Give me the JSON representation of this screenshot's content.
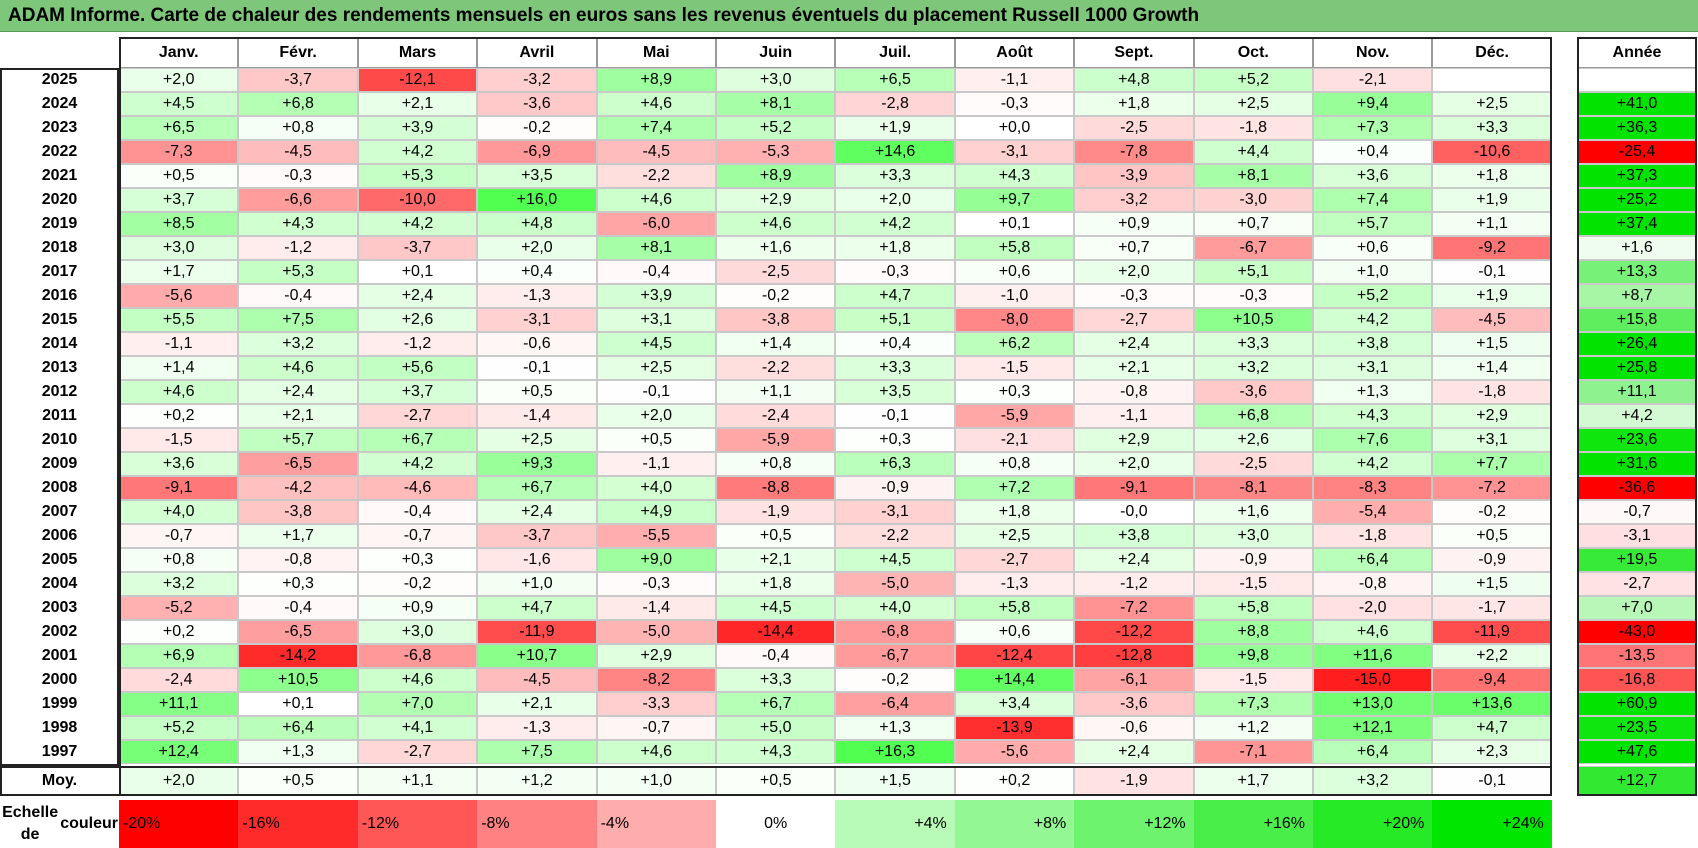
{
  "title": "ADAM Informe. Carte de chaleur des rendements mensuels en euros sans les revenus éventuels du placement Russell 1000 Growth",
  "colors": {
    "negative_max": "#ff0000",
    "neutral": "#ffffff",
    "positive_max": "#00e000",
    "title_bg": "#7dc67a"
  },
  "chart_data": {
    "type": "heatmap",
    "title": "ADAM Informe. Carte de chaleur des rendements mensuels en euros sans les revenus éventuels du placement Russell 1000 Growth",
    "months": [
      "Janv.",
      "Févr.",
      "Mars",
      "Avril",
      "Mai",
      "Juin",
      "Juil.",
      "Août",
      "Sept.",
      "Oct.",
      "Nov.",
      "Déc."
    ],
    "year_header": "Année",
    "rows": [
      {
        "year": "2025",
        "values": [
          "+2,0",
          "-3,7",
          "-12,1",
          "-3,2",
          "+8,9",
          "+3,0",
          "+6,5",
          "-1,1",
          "+4,8",
          "+5,2",
          "-2,1",
          ""
        ],
        "annual": ""
      },
      {
        "year": "2024",
        "values": [
          "+4,5",
          "+6,8",
          "+2,1",
          "-3,6",
          "+4,6",
          "+8,1",
          "-2,8",
          "-0,3",
          "+1,8",
          "+2,5",
          "+9,4",
          "+2,5"
        ],
        "annual": "+41,0"
      },
      {
        "year": "2023",
        "values": [
          "+6,5",
          "+0,8",
          "+3,9",
          "-0,2",
          "+7,4",
          "+5,2",
          "+1,9",
          "+0,0",
          "-2,5",
          "-1,8",
          "+7,3",
          "+3,3"
        ],
        "annual": "+36,3"
      },
      {
        "year": "2022",
        "values": [
          "-7,3",
          "-4,5",
          "+4,2",
          "-6,9",
          "-4,5",
          "-5,3",
          "+14,6",
          "-3,1",
          "-7,8",
          "+4,4",
          "+0,4",
          "-10,6"
        ],
        "annual": "-25,4"
      },
      {
        "year": "2021",
        "values": [
          "+0,5",
          "-0,3",
          "+5,3",
          "+3,5",
          "-2,2",
          "+8,9",
          "+3,3",
          "+4,3",
          "-3,9",
          "+8,1",
          "+3,6",
          "+1,8"
        ],
        "annual": "+37,3"
      },
      {
        "year": "2020",
        "values": [
          "+3,7",
          "-6,6",
          "-10,0",
          "+16,0",
          "+4,6",
          "+2,9",
          "+2,0",
          "+9,7",
          "-3,2",
          "-3,0",
          "+7,4",
          "+1,9"
        ],
        "annual": "+25,2"
      },
      {
        "year": "2019",
        "values": [
          "+8,5",
          "+4,3",
          "+4,2",
          "+4,8",
          "-6,0",
          "+4,6",
          "+4,2",
          "+0,1",
          "+0,9",
          "+0,7",
          "+5,7",
          "+1,1"
        ],
        "annual": "+37,4"
      },
      {
        "year": "2018",
        "values": [
          "+3,0",
          "-1,2",
          "-3,7",
          "+2,0",
          "+8,1",
          "+1,6",
          "+1,8",
          "+5,8",
          "+0,7",
          "-6,7",
          "+0,6",
          "-9,2"
        ],
        "annual": "+1,6"
      },
      {
        "year": "2017",
        "values": [
          "+1,7",
          "+5,3",
          "+0,1",
          "+0,4",
          "-0,4",
          "-2,5",
          "-0,3",
          "+0,6",
          "+2,0",
          "+5,1",
          "+1,0",
          "-0,1"
        ],
        "annual": "+13,3"
      },
      {
        "year": "2016",
        "values": [
          "-5,6",
          "-0,4",
          "+2,4",
          "-1,3",
          "+3,9",
          "-0,2",
          "+4,7",
          "-1,0",
          "-0,3",
          "-0,3",
          "+5,2",
          "+1,9"
        ],
        "annual": "+8,7"
      },
      {
        "year": "2015",
        "values": [
          "+5,5",
          "+7,5",
          "+2,6",
          "-3,1",
          "+3,1",
          "-3,8",
          "+5,1",
          "-8,0",
          "-2,7",
          "+10,5",
          "+4,2",
          "-4,5"
        ],
        "annual": "+15,8"
      },
      {
        "year": "2014",
        "values": [
          "-1,1",
          "+3,2",
          "-1,2",
          "-0,6",
          "+4,5",
          "+1,4",
          "+0,4",
          "+6,2",
          "+2,4",
          "+3,3",
          "+3,8",
          "+1,5"
        ],
        "annual": "+26,4"
      },
      {
        "year": "2013",
        "values": [
          "+1,4",
          "+4,6",
          "+5,6",
          "-0,1",
          "+2,5",
          "-2,2",
          "+3,3",
          "-1,5",
          "+2,1",
          "+3,2",
          "+3,1",
          "+1,4"
        ],
        "annual": "+25,8"
      },
      {
        "year": "2012",
        "values": [
          "+4,6",
          "+2,4",
          "+3,7",
          "+0,5",
          "-0,1",
          "+1,1",
          "+3,5",
          "+0,3",
          "-0,8",
          "-3,6",
          "+1,3",
          "-1,8"
        ],
        "annual": "+11,1"
      },
      {
        "year": "2011",
        "values": [
          "+0,2",
          "+2,1",
          "-2,7",
          "-1,4",
          "+2,0",
          "-2,4",
          "-0,1",
          "-5,9",
          "-1,1",
          "+6,8",
          "+4,3",
          "+2,9"
        ],
        "annual": "+4,2"
      },
      {
        "year": "2010",
        "values": [
          "-1,5",
          "+5,7",
          "+6,7",
          "+2,5",
          "+0,5",
          "-5,9",
          "+0,3",
          "-2,1",
          "+2,9",
          "+2,6",
          "+7,6",
          "+3,1"
        ],
        "annual": "+23,6"
      },
      {
        "year": "2009",
        "values": [
          "+3,6",
          "-6,5",
          "+4,2",
          "+9,3",
          "-1,1",
          "+0,8",
          "+6,3",
          "+0,8",
          "+2,0",
          "-2,5",
          "+4,2",
          "+7,7"
        ],
        "annual": "+31,6"
      },
      {
        "year": "2008",
        "values": [
          "-9,1",
          "-4,2",
          "-4,6",
          "+6,7",
          "+4,0",
          "-8,8",
          "-0,9",
          "+7,2",
          "-9,1",
          "-8,1",
          "-8,3",
          "-7,2"
        ],
        "annual": "-36,6"
      },
      {
        "year": "2007",
        "values": [
          "+4,0",
          "-3,8",
          "-0,4",
          "+2,4",
          "+4,9",
          "-1,9",
          "-3,1",
          "+1,8",
          "-0,0",
          "+1,6",
          "-5,4",
          "-0,2"
        ],
        "annual": "-0,7"
      },
      {
        "year": "2006",
        "values": [
          "-0,7",
          "+1,7",
          "-0,7",
          "-3,7",
          "-5,5",
          "+0,5",
          "-2,2",
          "+2,5",
          "+3,8",
          "+3,0",
          "-1,8",
          "+0,5"
        ],
        "annual": "-3,1"
      },
      {
        "year": "2005",
        "values": [
          "+0,8",
          "-0,8",
          "+0,3",
          "-1,6",
          "+9,0",
          "+2,1",
          "+4,5",
          "-2,7",
          "+2,4",
          "-0,9",
          "+6,4",
          "-0,9"
        ],
        "annual": "+19,5"
      },
      {
        "year": "2004",
        "values": [
          "+3,2",
          "+0,3",
          "-0,2",
          "+1,0",
          "-0,3",
          "+1,8",
          "-5,0",
          "-1,3",
          "-1,2",
          "-1,5",
          "-0,8",
          "+1,5"
        ],
        "annual": "-2,7"
      },
      {
        "year": "2003",
        "values": [
          "-5,2",
          "-0,4",
          "+0,9",
          "+4,7",
          "-1,4",
          "+4,5",
          "+4,0",
          "+5,8",
          "-7,2",
          "+5,8",
          "-2,0",
          "-1,7"
        ],
        "annual": "+7,0"
      },
      {
        "year": "2002",
        "values": [
          "+0,2",
          "-6,5",
          "+3,0",
          "-11,9",
          "-5,0",
          "-14,4",
          "-6,8",
          "+0,6",
          "-12,2",
          "+8,8",
          "+4,6",
          "-11,9"
        ],
        "annual": "-43,0"
      },
      {
        "year": "2001",
        "values": [
          "+6,9",
          "-14,2",
          "-6,8",
          "+10,7",
          "+2,9",
          "-0,4",
          "-6,7",
          "-12,4",
          "-12,8",
          "+9,8",
          "+11,6",
          "+2,2"
        ],
        "annual": "-13,5"
      },
      {
        "year": "2000",
        "values": [
          "-2,4",
          "+10,5",
          "+4,6",
          "-4,5",
          "-8,2",
          "+3,3",
          "-0,2",
          "+14,4",
          "-6,1",
          "-1,5",
          "-15,0",
          "-9,4"
        ],
        "annual": "-16,8"
      },
      {
        "year": "1999",
        "values": [
          "+11,1",
          "+0,1",
          "+7,0",
          "+2,1",
          "-3,3",
          "+6,7",
          "-6,4",
          "+3,4",
          "-3,6",
          "+7,3",
          "+13,0",
          "+13,6"
        ],
        "annual": "+60,9"
      },
      {
        "year": "1998",
        "values": [
          "+5,2",
          "+6,4",
          "+4,1",
          "-1,3",
          "-0,7",
          "+5,0",
          "+1,3",
          "-13,9",
          "-0,6",
          "+1,2",
          "+12,1",
          "+4,7"
        ],
        "annual": "+23,5"
      },
      {
        "year": "1997",
        "values": [
          "+12,4",
          "+1,3",
          "-2,7",
          "+7,5",
          "+4,6",
          "+4,3",
          "+16,3",
          "-5,6",
          "+2,4",
          "-7,1",
          "+6,4",
          "+2,3"
        ],
        "annual": "+47,6"
      }
    ],
    "average": {
      "label": "Moy.",
      "values": [
        "+2,0",
        "+0,5",
        "+1,1",
        "+1,2",
        "+1,0",
        "+0,5",
        "+1,5",
        "+0,2",
        "-1,9",
        "+1,7",
        "+3,2",
        "-0,1"
      ],
      "annual": "+12,7"
    },
    "color_scale": {
      "label_line1": "Echelle de",
      "label_line2": "couleur",
      "steps": [
        "-20%",
        "-16%",
        "-12%",
        "-8%",
        "-4%",
        "0%",
        "+4%",
        "+8%",
        "+12%",
        "+16%",
        "+20%",
        "+24%"
      ]
    }
  }
}
